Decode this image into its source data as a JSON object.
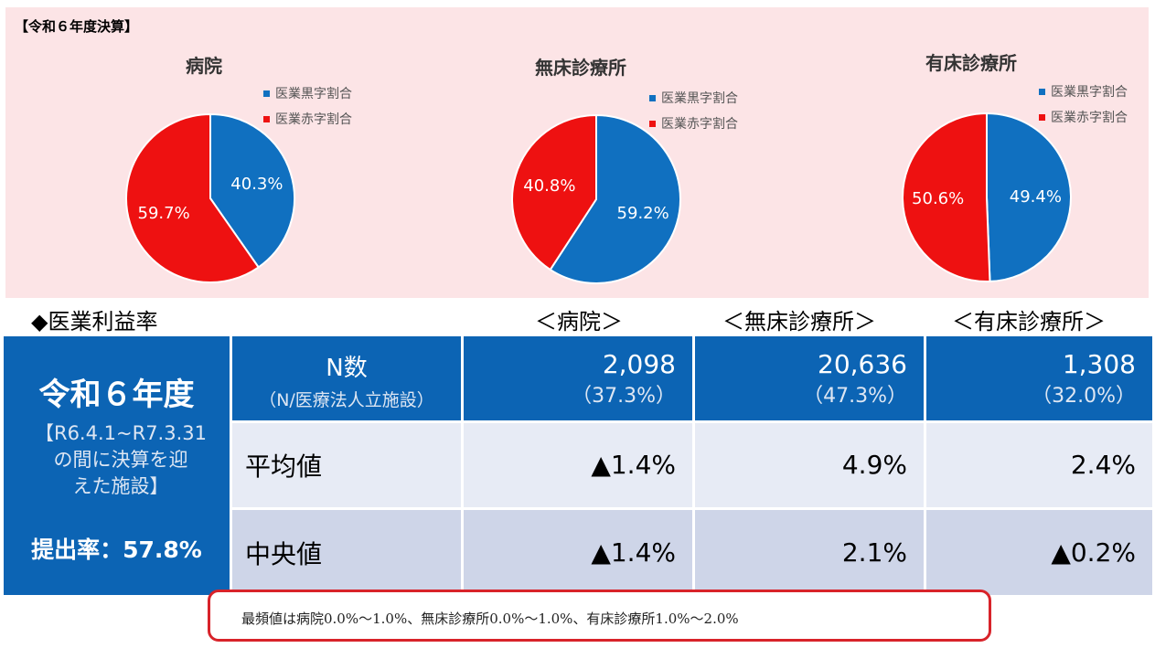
{
  "panel_title": "【令和６年度決算】",
  "colors": {
    "surplus": "#1070c0",
    "deficit": "#ee1111",
    "panel": "#fce4e6",
    "table_blue": "#0c64b4"
  },
  "chart_data": [
    {
      "type": "pie",
      "title": "病院",
      "legend": [
        "医業黒字割合",
        "医業赤字割合"
      ],
      "slices": [
        {
          "name": "医業黒字割合",
          "value": 40.3,
          "label": "40.3%"
        },
        {
          "name": "医業赤字割合",
          "value": 59.7,
          "label": "59.7%"
        }
      ]
    },
    {
      "type": "pie",
      "title": "無床診療所",
      "legend": [
        "医業黒字割合",
        "医業赤字割合"
      ],
      "slices": [
        {
          "name": "医業黒字割合",
          "value": 59.2,
          "label": "59.2%"
        },
        {
          "name": "医業赤字割合",
          "value": 40.8,
          "label": "40.8%"
        }
      ]
    },
    {
      "type": "pie",
      "title": "有床診療所",
      "legend": [
        "医業黒字割合",
        "医業赤字割合"
      ],
      "slices": [
        {
          "name": "医業黒字割合",
          "value": 49.4,
          "label": "49.4%"
        },
        {
          "name": "医業赤字割合",
          "value": 50.6,
          "label": "50.6%"
        }
      ]
    }
  ],
  "section_title": "◆医業利益率",
  "column_titles": [
    "＜病院＞",
    "＜無床診療所＞",
    "＜有床診療所＞"
  ],
  "left_block": {
    "title": "令和６年度",
    "period_lines": [
      "【R6.4.1~R7.3.31",
      "の間に決算を迎",
      "えた施設】"
    ],
    "rate": "提出率：57.8%"
  },
  "table": {
    "header": {
      "label": "N数",
      "sublabel": "（N/医療法人立施設）",
      "values": [
        {
          "n": "2,098",
          "pct": "（37.3%）"
        },
        {
          "n": "20,636",
          "pct": "（47.3%）"
        },
        {
          "n": "1,308",
          "pct": "（32.0%）"
        }
      ]
    },
    "rows": [
      {
        "label": "平均値",
        "values": [
          "▲1.4%",
          "4.9%",
          "2.4%"
        ]
      },
      {
        "label": "中央値",
        "values": [
          "▲1.4%",
          "2.1%",
          "▲0.2%"
        ]
      }
    ]
  },
  "note": "最頻値は病院0.0%～1.0%、無床診療所0.0%～1.0%、有床診療所1.0%～2.0%"
}
